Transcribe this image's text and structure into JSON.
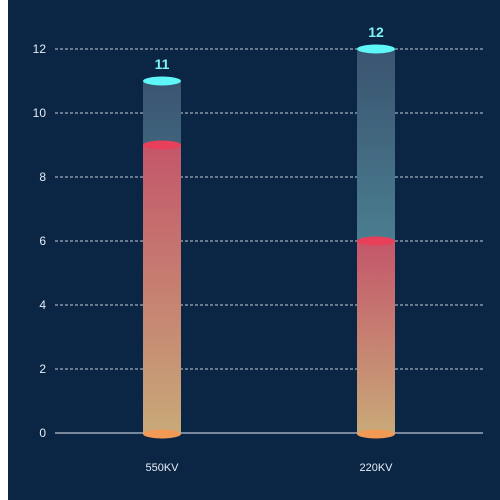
{
  "chart_data": {
    "type": "bar",
    "categories": [
      "550KV",
      "220KV"
    ],
    "series": [
      {
        "values": [
          9,
          6
        ]
      },
      {
        "values": [
          11,
          12
        ]
      }
    ],
    "totals": [
      "11",
      "12"
    ],
    "yticks": [
      "0",
      "2",
      "4",
      "6",
      "8",
      "10",
      "12"
    ],
    "ylim": [
      0,
      12
    ],
    "grid": true,
    "title": "",
    "xlabel": "",
    "ylabel": "",
    "colors": {
      "background": "#0b2545",
      "total_top": "#5ff6f8",
      "total_bottom": "#5aa6b0",
      "value_top": "#c4566a",
      "value_bottom": "#c8a978",
      "value_cap": "#e8405a",
      "base_cap": "#f29a55",
      "total_label": "#7ff3f6"
    }
  }
}
